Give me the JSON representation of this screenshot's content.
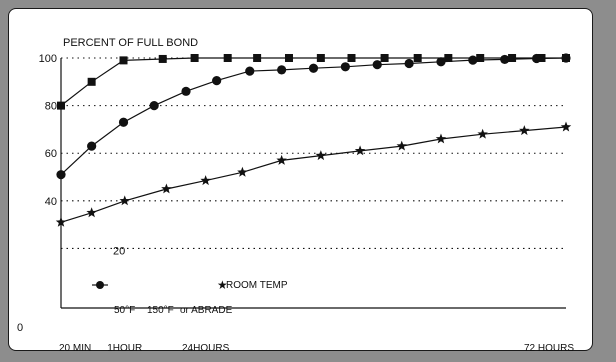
{
  "chart_data": {
    "type": "line",
    "title": "PERCENT OF FULL BOND",
    "y_ticks": [
      "100",
      "80",
      "60",
      "40",
      "20",
      "0"
    ],
    "y_tick_values": [
      100,
      80,
      60,
      40,
      20,
      0
    ],
    "ylim": [
      -5,
      100
    ],
    "x_ticks": [
      "20 MIN",
      "1HOUR",
      "24HOURS",
      "72 HOURS"
    ],
    "x_tick_values": [
      0,
      2.6,
      5.9,
      20.6
    ],
    "xlim": [
      0,
      20.6
    ],
    "grid": "dotted horizontal lines at y ticks",
    "legend_text": {
      "temp_150": "150°F",
      "abrade": "or ABRADE",
      "temp_50": "50°F",
      "room_temp": "ROOM TEMP"
    },
    "series": [
      {
        "marker": "square",
        "x": [
          0,
          1.25,
          2.55,
          4.15,
          5.45,
          6.8,
          8.0,
          9.3,
          10.6,
          11.85,
          13.2,
          14.55,
          15.8,
          17.1,
          18.4,
          19.6,
          20.6
        ],
        "values": [
          80,
          90,
          99,
          99.6,
          100,
          100,
          100,
          100,
          100,
          100,
          100,
          100,
          100,
          100,
          100,
          100,
          100
        ]
      },
      {
        "marker": "circle",
        "x": [
          0,
          1.25,
          2.55,
          3.8,
          5.1,
          6.35,
          7.7,
          9.0,
          10.3,
          11.6,
          12.9,
          14.2,
          15.5,
          16.8,
          18.1,
          19.4,
          20.6
        ],
        "values": [
          51,
          63,
          73,
          80,
          86,
          90.5,
          94.5,
          95,
          95.7,
          96.3,
          97.2,
          97.7,
          98.4,
          99.1,
          99.4,
          99.8,
          100
        ]
      },
      {
        "marker": "star",
        "x": [
          0,
          1.25,
          2.6,
          4.3,
          5.9,
          7.4,
          9.0,
          10.6,
          12.2,
          13.9,
          15.5,
          17.2,
          18.9,
          20.6
        ],
        "values": [
          31,
          35,
          40,
          45,
          48.5,
          52,
          57,
          59,
          61,
          63,
          66,
          68,
          69.5,
          71
        ]
      }
    ]
  }
}
